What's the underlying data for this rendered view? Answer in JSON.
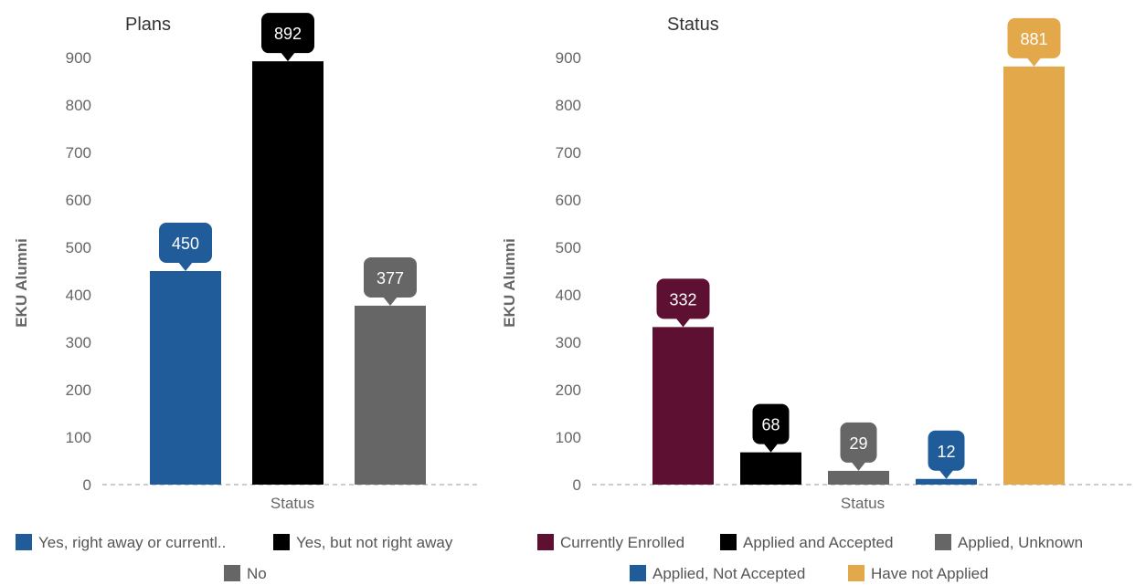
{
  "chart_data": [
    {
      "type": "bar",
      "title": "Plans",
      "ylabel": "EKU Alumni",
      "xlabel": "Status",
      "ylim": [
        0,
        900
      ],
      "yticks": [
        0,
        100,
        200,
        300,
        400,
        500,
        600,
        700,
        800,
        900
      ],
      "grid": false,
      "legend_position": "bottom",
      "categories": [
        "Yes, right away or currentl..",
        "Yes, but not right away",
        "No"
      ],
      "values": [
        450,
        892,
        377
      ],
      "colors": [
        "#1f5c99",
        "#000000",
        "#666666"
      ]
    },
    {
      "type": "bar",
      "title": "Status",
      "ylabel": "EKU Alumni",
      "xlabel": "Status",
      "ylim": [
        0,
        900
      ],
      "yticks": [
        0,
        100,
        200,
        300,
        400,
        500,
        600,
        700,
        800,
        900
      ],
      "grid": false,
      "legend_position": "bottom",
      "categories": [
        "Currently Enrolled",
        "Applied and Accepted",
        "Applied, Unknown",
        "Applied, Not Accepted",
        "Have not Applied"
      ],
      "values": [
        332,
        68,
        29,
        12,
        881
      ],
      "colors": [
        "#5e1033",
        "#000000",
        "#666666",
        "#1f5c99",
        "#e3a84a"
      ]
    }
  ]
}
